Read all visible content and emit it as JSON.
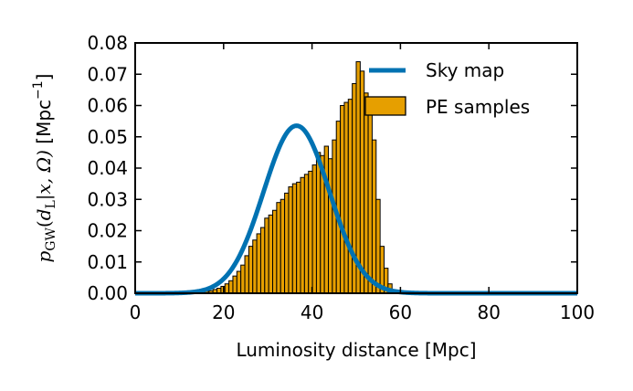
{
  "chart_data": {
    "type": "bar",
    "title": "",
    "xlabel": "Luminosity distance [Mpc]",
    "ylabel": "p_GW(d_L|x, Ω) [Mpc⁻¹]",
    "ylabel_parts": {
      "p": "p",
      "p_sub": "GW",
      "open": "(",
      "d": "d",
      "d_sub": "L",
      "rest": "|x, Ω)",
      "unit_open": " [Mpc",
      "unit_sup": "−1",
      "unit_close": "]"
    },
    "xlim": [
      0,
      100
    ],
    "ylim": [
      0,
      0.08
    ],
    "xticks": [
      "0",
      "20",
      "40",
      "60",
      "80",
      "100"
    ],
    "yticks": [
      "0.00",
      "0.01",
      "0.02",
      "0.03",
      "0.04",
      "0.05",
      "0.06",
      "0.07",
      "0.08"
    ],
    "grid": false,
    "legend_position": "top-right",
    "colors": {
      "curve": "#0072b2",
      "bars": "#e69f00",
      "bar_edge": "#000000"
    },
    "series": [
      {
        "name": "PE samples",
        "kind": "histogram",
        "bin_width": 0.9,
        "bin_start": 14.0,
        "values": [
          0.0003,
          0.0004,
          0.0006,
          0.0008,
          0.0012,
          0.0016,
          0.0022,
          0.003,
          0.004,
          0.0055,
          0.007,
          0.009,
          0.012,
          0.015,
          0.017,
          0.019,
          0.021,
          0.024,
          0.025,
          0.0265,
          0.029,
          0.03,
          0.032,
          0.034,
          0.035,
          0.0355,
          0.037,
          0.038,
          0.039,
          0.041,
          0.045,
          0.044,
          0.047,
          0.043,
          0.049,
          0.055,
          0.06,
          0.061,
          0.062,
          0.067,
          0.074,
          0.071,
          0.064,
          0.061,
          0.049,
          0.03,
          0.015,
          0.008,
          0.003,
          0.001,
          0.0004,
          0.0002
        ]
      },
      {
        "name": "Sky map",
        "kind": "line",
        "mean": 36.5,
        "sigma": 7.45
      }
    ],
    "legend": [
      "Sky map",
      "PE samples"
    ]
  }
}
